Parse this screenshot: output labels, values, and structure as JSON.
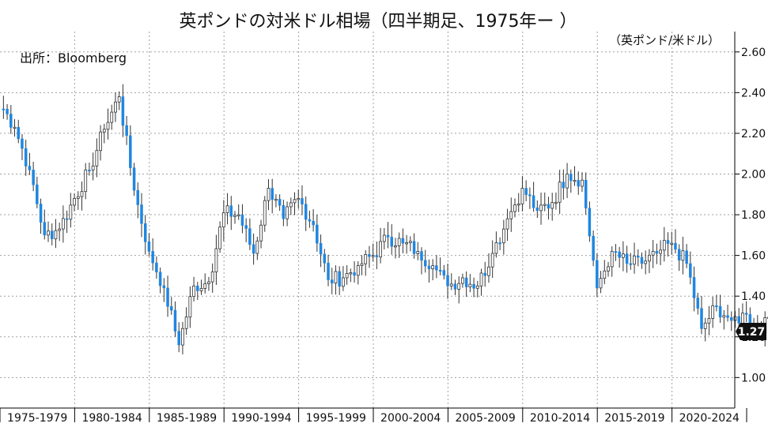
{
  "chart_data": {
    "type": "candlestick",
    "title": "英ポンドの対米ドル相場（四半期足、1975年ー ）",
    "unit_label": "（英ポンド/米ドル）",
    "source": "出所：Bloomberg",
    "xlabel": "",
    "ylabel": "",
    "ylim": [
      0.85,
      2.7
    ],
    "y_ticks": [
      1.0,
      1.2,
      1.4,
      1.6,
      1.8,
      2.0,
      2.2,
      2.4,
      2.6
    ],
    "y_tick_labels": [
      "1.00",
      "1.20",
      "1.40",
      "1.60",
      "1.80",
      "2.00",
      "2.20",
      "2.40",
      "2.60"
    ],
    "x_period_labels": [
      "1975-1979",
      "1980-1984",
      "1985-1989",
      "1990-1994",
      "1995-1999",
      "2000-2004",
      "2005-2009",
      "2010-2014",
      "2015-2019",
      "2020-2024"
    ],
    "grid": true,
    "up_color": "#ffffff",
    "down_color": "#1f86e0",
    "last_value_label": "1.27",
    "year_close": [
      2.23,
      2.02,
      1.7,
      1.73,
      1.88,
      2.02,
      2.22,
      2.38,
      1.92,
      1.62,
      1.44,
      1.16,
      1.45,
      1.47,
      1.81,
      1.8,
      1.61,
      1.93,
      1.78,
      1.88,
      1.75,
      1.48,
      1.49,
      1.55,
      1.6,
      1.69,
      1.66,
      1.62,
      1.55,
      1.45,
      1.49,
      1.45,
      1.61,
      1.78,
      1.93,
      1.82,
      1.86,
      2.0,
      1.97,
      1.44,
      1.62,
      1.56,
      1.56,
      1.61,
      1.66,
      1.56,
      1.24,
      1.35,
      1.28,
      1.31,
      1.22,
      1.37,
      1.21,
      1.25,
      1.27
    ]
  }
}
